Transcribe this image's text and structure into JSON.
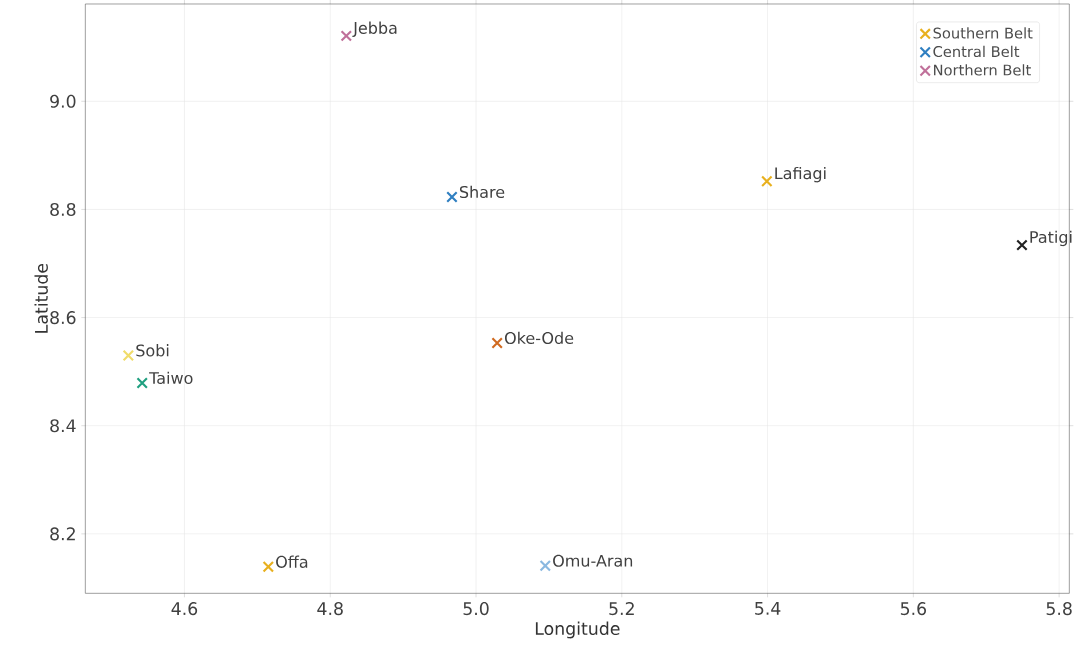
{
  "chart_data": {
    "type": "scatter",
    "xlabel": "Longitude",
    "ylabel": "Latitude",
    "series": [
      {
        "name": "Southern Belt",
        "color": "#e8b01e",
        "x": [
          4.715,
          5.399
        ],
        "values": [
          8.139,
          8.852
        ]
      },
      {
        "name": "Central Belt",
        "color": "#2f7fc1",
        "x": [
          4.967
        ],
        "values": [
          8.823
        ]
      },
      {
        "name": "Northern Belt",
        "color": "#c0709a",
        "x": [
          4.822
        ],
        "values": [
          9.121
        ]
      },
      {
        "color": "#f0dc6a",
        "x": [
          4.523
        ],
        "values": [
          8.53
        ]
      },
      {
        "color": "#8ab8e0",
        "x": [
          5.095
        ],
        "values": [
          8.141
        ]
      },
      {
        "color": "#20a080",
        "x": [
          4.542
        ],
        "values": [
          8.479
        ]
      },
      {
        "color": "#d06a20",
        "x": [
          5.029
        ],
        "values": [
          8.553
        ]
      },
      {
        "color": "#222222",
        "x": [
          5.749
        ],
        "values": [
          8.734
        ]
      }
    ],
    "annotations": [
      {
        "text": "Jebba",
        "x": 4.822,
        "y": 9.121
      },
      {
        "text": "Share",
        "x": 4.967,
        "y": 8.823
      },
      {
        "text": "Lafiagi",
        "x": 5.399,
        "y": 8.852
      },
      {
        "text": "Patigi",
        "x": 5.749,
        "y": 8.734
      },
      {
        "text": "Sobi",
        "x": 4.523,
        "y": 8.53
      },
      {
        "text": "Oke-Ode",
        "x": 5.029,
        "y": 8.553
      },
      {
        "text": "Taiwo",
        "x": 4.542,
        "y": 8.479
      },
      {
        "text": "Offa",
        "x": 4.715,
        "y": 8.139
      },
      {
        "text": "Omu-Aran",
        "x": 5.095,
        "y": 8.141
      }
    ],
    "xlim": [
      4.464,
      5.814
    ],
    "ylim": [
      8.09,
      9.18
    ],
    "xticks": [
      4.6,
      4.8,
      {
        "value": 5,
        "label": "5.0"
      },
      5.2,
      5.4,
      5.6,
      5.8
    ],
    "yticks": [
      8.2,
      8.4,
      8.6,
      8.8,
      {
        "value": 9,
        "label": "9.0"
      }
    ],
    "grid": true,
    "legend": "top right",
    "marker": "cross"
  }
}
